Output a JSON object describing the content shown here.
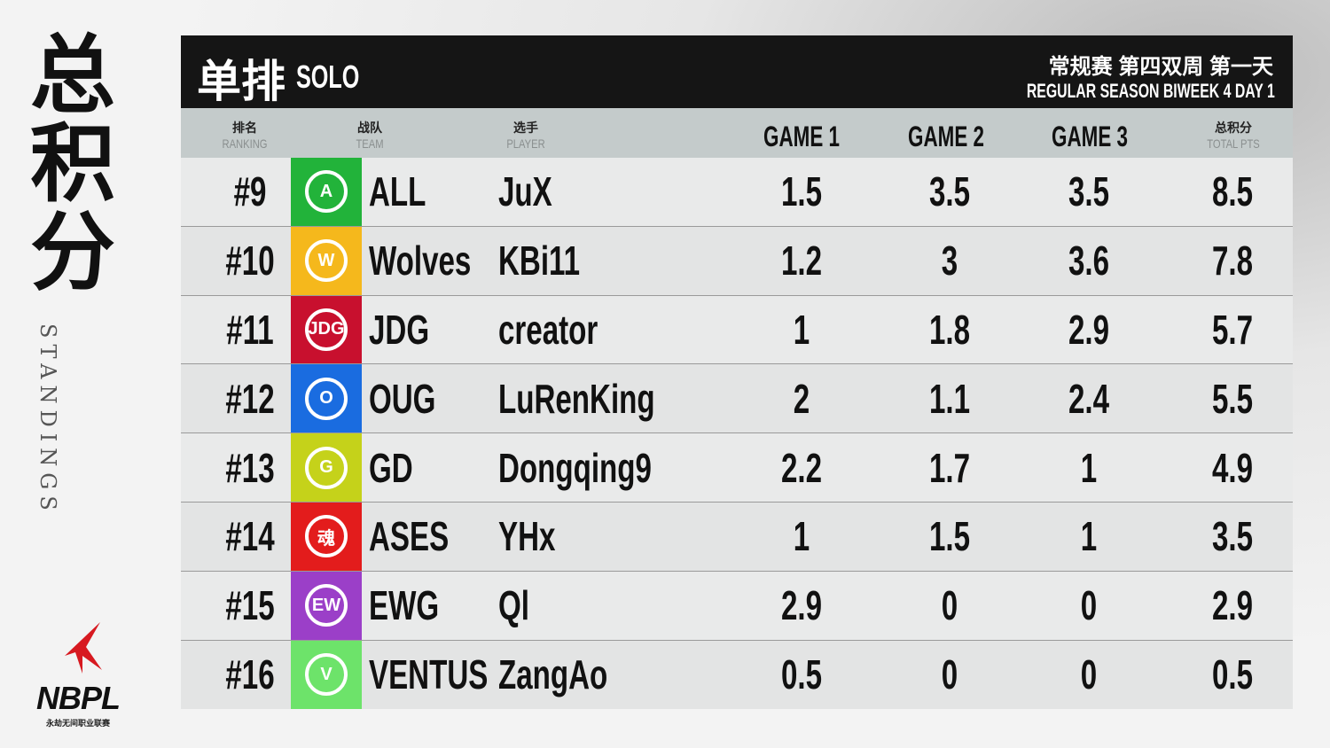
{
  "side": {
    "title_chars": [
      "总",
      "积",
      "分"
    ],
    "subtitle": "STANDINGS"
  },
  "logo": {
    "name": "NBPL",
    "subtitle": "永劫无间职业联赛",
    "accent": "#d71920"
  },
  "header": {
    "title_cn": "单排",
    "title_en": "SOLO",
    "event_cn": "常规赛 第四双周 第一天",
    "event_en": "REGULAR SEASON BIWEEK 4 DAY 1"
  },
  "columns": {
    "ranking_cn": "排名",
    "ranking_en": "RANKING",
    "team_cn": "战队",
    "team_en": "TEAM",
    "player_cn": "选手",
    "player_en": "PLAYER",
    "game1": "GAME 1",
    "game2": "GAME 2",
    "game3": "GAME 3",
    "total_cn": "总积分",
    "total_en": "TOTAL PTS"
  },
  "rows": [
    {
      "rank": "#9",
      "team": "ALL",
      "player": "JuX",
      "g1": "1.5",
      "g2": "3.5",
      "g3": "3.5",
      "total": "8.5",
      "color": "#22b33a",
      "icon": "A"
    },
    {
      "rank": "#10",
      "team": "Wolves",
      "player": "KBi11",
      "g1": "1.2",
      "g2": "3",
      "g3": "3.6",
      "total": "7.8",
      "color": "#f5b81c",
      "icon": "W"
    },
    {
      "rank": "#11",
      "team": "JDG",
      "player": "creator",
      "g1": "1",
      "g2": "1.8",
      "g3": "2.9",
      "total": "5.7",
      "color": "#c8102e",
      "icon": "JDG"
    },
    {
      "rank": "#12",
      "team": "OUG",
      "player": "LuRenKing",
      "g1": "2",
      "g2": "1.1",
      "g3": "2.4",
      "total": "5.5",
      "color": "#1a6ce0",
      "icon": "O"
    },
    {
      "rank": "#13",
      "team": "GD",
      "player": "Dongqing9",
      "g1": "2.2",
      "g2": "1.7",
      "g3": "1",
      "total": "4.9",
      "color": "#c5d21a",
      "icon": "G"
    },
    {
      "rank": "#14",
      "team": "ASES",
      "player": "YHx",
      "g1": "1",
      "g2": "1.5",
      "g3": "1",
      "total": "3.5",
      "color": "#e31c1c",
      "icon": "魂"
    },
    {
      "rank": "#15",
      "team": "EWG",
      "player": "Ql",
      "g1": "2.9",
      "g2": "0",
      "g3": "0",
      "total": "2.9",
      "color": "#9b3fc8",
      "icon": "EW"
    },
    {
      "rank": "#16",
      "team": "VENTUS",
      "player": "ZangAo",
      "g1": "0.5",
      "g2": "0",
      "g3": "0",
      "total": "0.5",
      "color": "#6de36a",
      "icon": "V"
    }
  ]
}
